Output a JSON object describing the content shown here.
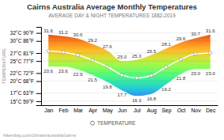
{
  "chart_data": {
    "type": "area",
    "title": "Cairns Australia Average Monthly Temperatures",
    "subtitle": "AVERAGE DAY & NIGHT TEMPERATURES 1882-2019",
    "footer": "hikersbay.com/climate/australia/cairns",
    "y_label": "TEMPERATURE",
    "categories": [
      "Jan",
      "Feb",
      "Mar",
      "Apr",
      "May",
      "Jun",
      "Jul",
      "Aug",
      "Sep",
      "Oct",
      "Nov",
      "Dec"
    ],
    "series": [
      {
        "type": "area",
        "data_labels": true,
        "values": [
          31.6,
          31.2,
          30.6,
          29.2,
          27.6,
          25.0,
          25.3,
          26.5,
          28.1,
          29.6,
          30.7,
          31.6
        ],
        "value_labels": [
          "31.6",
          "31.2",
          "30.6",
          "29.2",
          "27.6",
          "25.0",
          "25.3",
          "26.5",
          "28.1",
          "29.6",
          "30.7",
          "31.6"
        ]
      },
      {
        "type": "area",
        "data_labels": true,
        "values": [
          23.6,
          23.6,
          22.9,
          21.5,
          19.8,
          17.7,
          16.3,
          16.8,
          19.2,
          21.8,
          23.0,
          23.0
        ],
        "value_labels": [
          "23.6",
          "23.6",
          "22.9",
          "21.5",
          "19.8",
          "17.7",
          "16.3",
          "16.8",
          "19.2",
          "21.8",
          "23.0",
          "23.0"
        ]
      },
      {
        "type": "line",
        "name": "TEMPERATURE",
        "color": "#ffffff",
        "marker": "circle",
        "values": [
          27.5,
          27.2,
          26.5,
          25.2,
          23.6,
          21.5,
          20.8,
          21.4,
          23.5,
          25.4,
          26.8,
          27.0
        ]
      }
    ],
    "ylim": [
      14.0,
      33.5
    ],
    "yticks": [
      {
        "value": 32,
        "label": "32°C 90°F"
      },
      {
        "value": 30,
        "label": "30°C 86°F"
      },
      {
        "value": 27,
        "label": "27°C 81°F"
      },
      {
        "value": 25,
        "label": "25°C 77°F"
      },
      {
        "value": 22,
        "label": "22°C 72°F"
      },
      {
        "value": 20,
        "label": "20°C 68°F"
      },
      {
        "value": 17,
        "label": "17°C 63°F"
      },
      {
        "value": 15,
        "label": "15°C 59°F"
      }
    ],
    "grid": true,
    "legend": "bottom"
  }
}
